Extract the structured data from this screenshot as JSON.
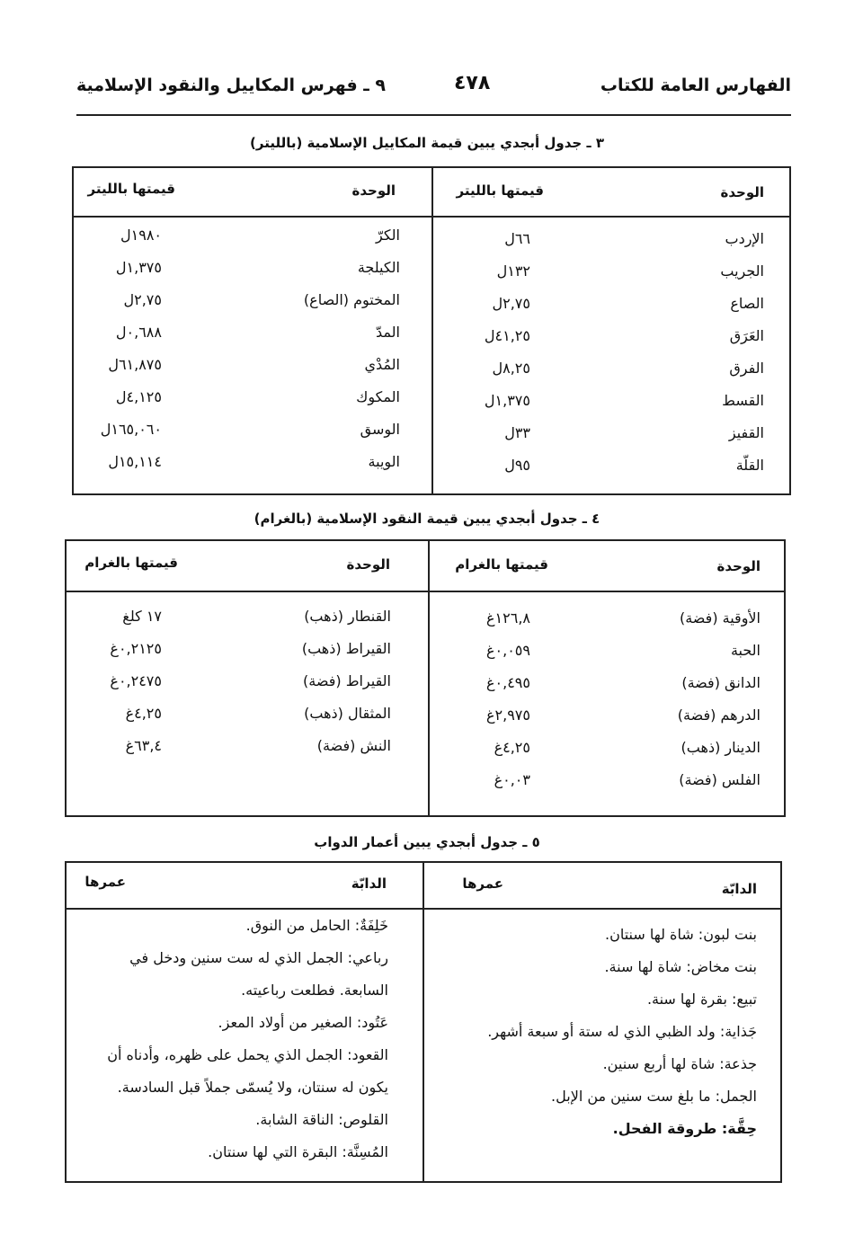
{
  "header": {
    "book_index": "الفهارس العامة للكتاب",
    "page_number": "٤٧٨",
    "section": "٩ ـ فهرس المكاييل والنقود الإسلامية"
  },
  "table3": {
    "title": "٣ ـ جدول أبجدي يبين قيمة المكاييل الإسلامية (بالليتر)",
    "col_unit": "الوحدة",
    "col_value": "قيمتها بالليتر",
    "right": [
      [
        "الإردب",
        "٦٦ل"
      ],
      [
        "الجريب",
        "١٣٢ل"
      ],
      [
        "الصاع",
        "٢,٧٥ل"
      ],
      [
        "العَرَق",
        "٤١,٢٥ل"
      ],
      [
        "الفرق",
        "٨,٢٥ل"
      ],
      [
        "القسط",
        "١,٣٧٥ل"
      ],
      [
        "القفيز",
        "٣٣ل"
      ],
      [
        "القلّة",
        "٩٥ل"
      ]
    ],
    "left": [
      [
        "الكرّ",
        "١٩٨٠ل"
      ],
      [
        "الكيلجة",
        "١,٣٧٥ل"
      ],
      [
        "المختوم (الصاع)",
        "٢,٧٥ل"
      ],
      [
        "المدّ",
        "٠,٦٨٨ل"
      ],
      [
        "المُدْي",
        "٦١,٨٧٥ل"
      ],
      [
        "المكوك",
        "٤,١٢٥ل"
      ],
      [
        "الوسق",
        "١٦٥,٠٦٠ل"
      ],
      [
        "الويبة",
        "١٥,١١٤ل"
      ]
    ]
  },
  "table4": {
    "title": "٤ ـ جدول أبجدي يبين قيمة النقود الإسلامية (بالغرام)",
    "col_unit": "الوحدة",
    "col_value": "قيمتها بالغرام",
    "right": [
      [
        "الأوقية (فضة)",
        "١٢٦,٨غ"
      ],
      [
        "الحبة",
        "٠,٠٥٩غ"
      ],
      [
        "الدانق (فضة)",
        "٠,٤٩٥غ"
      ],
      [
        "الدرهم (فضة)",
        "٢,٩٧٥غ"
      ],
      [
        "الدينار (ذهب)",
        "٤,٢٥غ"
      ],
      [
        "الفلس (فضة)",
        "٠,٠٣غ"
      ]
    ],
    "left": [
      [
        "القنطار (ذهب)",
        "١٧ كلغ"
      ],
      [
        "القيراط (ذهب)",
        "٠,٢١٢٥غ"
      ],
      [
        "القيراط (فضة)",
        "٠,٢٤٧٥غ"
      ],
      [
        "المثقال (ذهب)",
        "٤,٢٥غ"
      ],
      [
        "النش (فضة)",
        "٦٣,٤غ"
      ]
    ]
  },
  "table5": {
    "title": "٥ ـ جدول أبجدي يبين أعمار الدواب",
    "col_animal": "الدابّة",
    "col_age": "عمرها",
    "right": [
      {
        "text": "بنت لبون: شاة لها سنتان."
      },
      {
        "text": "بنت مخاض: شاة لها سنة."
      },
      {
        "text": "تبيع: بقرة لها سنة."
      },
      {
        "text": "جَذاية: ولد الظبي الذي له ستة أو سبعة أشهر."
      },
      {
        "text": "جذعة: شاة لها أربع سنين."
      },
      {
        "text": "الجمل: ما بلغ ست سنين من الإبل."
      },
      {
        "text": "حِقَّة: طروقة الفحل.",
        "bold": true
      }
    ],
    "left": [
      {
        "text": "خَلِفَةٌ: الحامل من النوق."
      },
      {
        "text": "رباعي: الجمل الذي له ست سنين ودخل في السابعة. فطلعت رباعيته."
      },
      {
        "text": "عَتُود: الصغير من أولاد المعز."
      },
      {
        "text": "القعود: الجمل الذي يحمل على ظهره، وأدناه أن يكون له سنتان، ولا يُسمّى جملاً قبل السادسة."
      },
      {
        "text": "القلوص: الناقة الشابة."
      },
      {
        "text": "المُسِنَّة: البقرة التي لها سنتان."
      }
    ]
  }
}
